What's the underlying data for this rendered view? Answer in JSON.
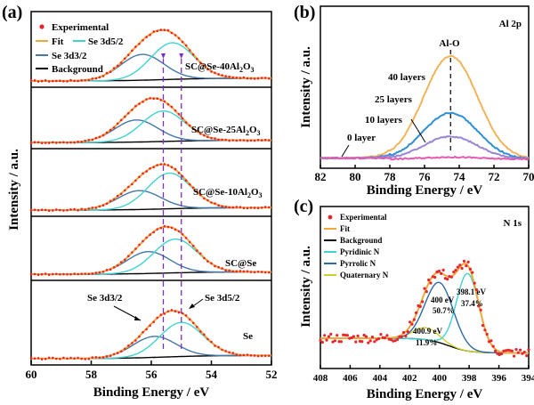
{
  "figure": {
    "panel_a": "(a)",
    "panel_b": "(b)",
    "panel_c": "(c)"
  },
  "chart_data": [
    {
      "type": "line",
      "panel": "(a)",
      "xlabel": "Binding Energy / eV",
      "ylabel": "Intensity / a.u.",
      "xlim": [
        60,
        52
      ],
      "xticks": [
        "60",
        "58",
        "56",
        "54",
        "52"
      ],
      "legend": {
        "placement": "top-left",
        "entries": [
          "Experimental",
          "Fit",
          "Se 3d5/2",
          "Se 3d3/2",
          "Background"
        ]
      },
      "colors": {
        "experimental": "#e8262a",
        "fit": "#f2a73b",
        "se_3d52": "#3fd2d0",
        "se_3d32": "#4577a8",
        "background": "#000000",
        "guide": "#7a2fc8"
      },
      "guide_lines_eV": [
        55.6,
        55.0
      ],
      "stack_labels": {
        "s40": [
          "SC@Se-40Al",
          "2",
          "O",
          "3"
        ],
        "s25": [
          "SC@Se-25Al",
          "2",
          "O",
          "3"
        ],
        "s10": [
          "SC@Se-10Al",
          "2",
          "O",
          "3"
        ],
        "scse": "SC@Se",
        "se": "Se"
      },
      "annotations": {
        "se_3d32": "Se 3d3/2",
        "se_3d52": "Se 3d5/2"
      },
      "series": [
        {
          "sample": "SC@Se-40Al2O3",
          "fit_peak_eV": 55.9,
          "se_3d52_eV": 55.3,
          "se_3d32_eV": 56.3,
          "se_3d52_height": 0.78,
          "se_3d32_height": 0.55
        },
        {
          "sample": "SC@Se-25Al2O3",
          "fit_peak_eV": 55.8,
          "se_3d52_eV": 55.6,
          "se_3d32_eV": 56.5,
          "se_3d52_height": 0.8,
          "se_3d32_height": 0.58
        },
        {
          "sample": "SC@Se-10Al2O3",
          "fit_peak_eV": 55.7,
          "se_3d52_eV": 55.4,
          "se_3d32_eV": 56.4,
          "se_3d52_height": 0.85,
          "se_3d32_height": 0.45
        },
        {
          "sample": "SC@Se",
          "fit_peak_eV": 55.5,
          "se_3d52_eV": 55.2,
          "se_3d32_eV": 56.1,
          "se_3d52_height": 0.85,
          "se_3d32_height": 0.55
        },
        {
          "sample": "Se",
          "fit_peak_eV": 55.4,
          "se_3d52_eV": 55.0,
          "se_3d32_eV": 55.9,
          "se_3d52_height": 0.65,
          "se_3d32_height": 0.4
        }
      ]
    },
    {
      "type": "line",
      "panel": "(b)",
      "xlabel": "Binding Energy / eV",
      "ylabel": "Intensity / a.u.",
      "xlim": [
        82,
        70
      ],
      "xticks": [
        "82",
        "80",
        "78",
        "76",
        "74",
        "72",
        "70"
      ],
      "corner_label": "Al 2p",
      "peak_label": "Al-O",
      "peak_eV": 74.5,
      "series": [
        {
          "name": "40 layers",
          "color": "#f2b45a",
          "peak_height": 1.0
        },
        {
          "name": "25 layers",
          "color": "#2f8fd6",
          "peak_height": 0.45
        },
        {
          "name": "10 layers",
          "color": "#9a86d6",
          "peak_height": 0.22
        },
        {
          "name": "0 layer",
          "color": "#e35ab0",
          "peak_height": 0.02
        }
      ]
    },
    {
      "type": "line",
      "panel": "(c)",
      "xlabel": "Binding Energy / eV",
      "ylabel": "Intensity / a.u.",
      "xlim": [
        408,
        394
      ],
      "xticks": [
        "408",
        "406",
        "404",
        "402",
        "400",
        "398",
        "396",
        "394"
      ],
      "corner_label": "N 1s",
      "legend": {
        "placement": "top-left",
        "entries": [
          "Experimental",
          "Fit",
          "Background",
          "Pyridinic N",
          "Pyrrolic N",
          "Quaternary N"
        ]
      },
      "colors": {
        "experimental": "#e8262a",
        "fit": "#f2a73b",
        "background": "#000000",
        "pyridinic": "#3fd2d0",
        "pyrrolic": "#2e6aa8",
        "quaternary": "#cfcf2a"
      },
      "peaks": [
        {
          "name": "Pyridinic N",
          "center_eV": 398.1,
          "percent": 37.4,
          "label": [
            "398.1 eV",
            "37.4%"
          ]
        },
        {
          "name": "Pyrrolic N",
          "center_eV": 400.0,
          "percent": 50.7,
          "label": [
            "400 eV",
            "50.7%"
          ]
        },
        {
          "name": "Quaternary N",
          "center_eV": 400.9,
          "percent": 11.9,
          "label": [
            "400.9 eV",
            "11.9%"
          ]
        }
      ]
    }
  ]
}
